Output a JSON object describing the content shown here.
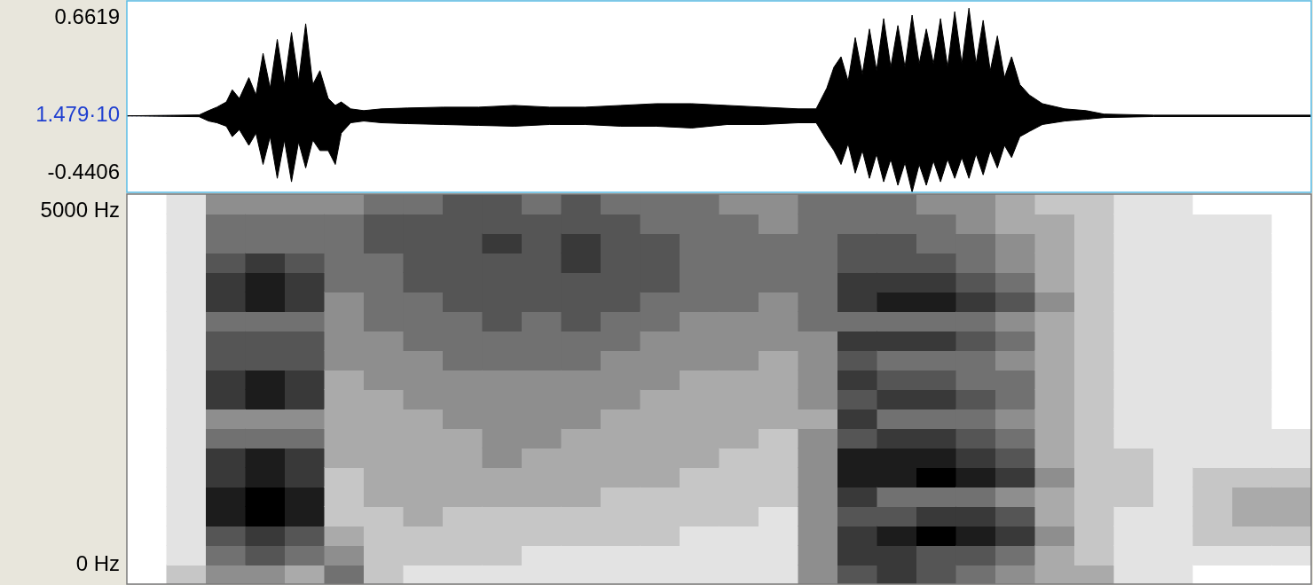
{
  "chart_data": [
    {
      "type": "line",
      "xlim": [
        0,
        1
      ],
      "ylim": [
        -0.4406,
        0.6619
      ],
      "yticks": [
        -0.4406,
        {
          "value": 1.479e-05,
          "label": "1.479·10"
        },
        0.6619
      ],
      "grid": false,
      "tick_labels": "y",
      "x": [
        0,
        0.061,
        0.069,
        0.076,
        0.084,
        0.089,
        0.095,
        0.103,
        0.109,
        0.115,
        0.121,
        0.127,
        0.133,
        0.139,
        0.145,
        0.151,
        0.157,
        0.163,
        0.17,
        0.176,
        0.181,
        0.189,
        0.2,
        0.215,
        0.237,
        0.267,
        0.297,
        0.327,
        0.357,
        0.387,
        0.417,
        0.447,
        0.477,
        0.507,
        0.537,
        0.567,
        0.582,
        0.591,
        0.597,
        0.603,
        0.609,
        0.615,
        0.621,
        0.627,
        0.633,
        0.639,
        0.645,
        0.651,
        0.657,
        0.663,
        0.669,
        0.675,
        0.681,
        0.687,
        0.693,
        0.699,
        0.705,
        0.711,
        0.717,
        0.723,
        0.729,
        0.735,
        0.741,
        0.747,
        0.754,
        0.762,
        0.773,
        0.792,
        0.81,
        0.825,
        0.867,
        1
      ],
      "series": [
        {
          "color": "#000000",
          "values": [
            0,
            0.005,
            0.03,
            0.05,
            0.08,
            0.15,
            0.1,
            0.22,
            0.12,
            0.36,
            0.16,
            0.44,
            0.18,
            0.48,
            0.2,
            0.53,
            0.18,
            0.26,
            0.1,
            0.06,
            0.08,
            0.04,
            0.03,
            0.04,
            0.045,
            0.05,
            0.05,
            0.06,
            0.05,
            0.05,
            0.06,
            0.07,
            0.07,
            0.06,
            0.05,
            0.04,
            0.04,
            0.16,
            0.28,
            0.34,
            0.2,
            0.45,
            0.24,
            0.5,
            0.26,
            0.56,
            0.28,
            0.52,
            0.28,
            0.58,
            0.3,
            0.5,
            0.3,
            0.56,
            0.28,
            0.6,
            0.3,
            0.62,
            0.3,
            0.55,
            0.26,
            0.46,
            0.22,
            0.34,
            0.18,
            0.12,
            0.07,
            0.04,
            0.03,
            0.01,
            0.004,
            0.004
          ]
        },
        {
          "color": "#000000",
          "values": [
            0,
            -0.005,
            -0.03,
            -0.04,
            -0.06,
            -0.12,
            -0.08,
            -0.17,
            -0.1,
            -0.28,
            -0.12,
            -0.36,
            -0.14,
            -0.38,
            -0.15,
            -0.3,
            -0.14,
            -0.2,
            -0.2,
            -0.28,
            -0.1,
            -0.04,
            -0.03,
            -0.04,
            -0.045,
            -0.05,
            -0.055,
            -0.06,
            -0.05,
            -0.05,
            -0.06,
            -0.06,
            -0.07,
            -0.05,
            -0.05,
            -0.04,
            -0.04,
            -0.14,
            -0.2,
            -0.28,
            -0.16,
            -0.33,
            -0.2,
            -0.36,
            -0.22,
            -0.38,
            -0.25,
            -0.4,
            -0.27,
            -0.44,
            -0.28,
            -0.4,
            -0.26,
            -0.38,
            -0.25,
            -0.36,
            -0.24,
            -0.36,
            -0.22,
            -0.34,
            -0.2,
            -0.3,
            -0.17,
            -0.24,
            -0.12,
            -0.09,
            -0.05,
            -0.03,
            -0.02,
            -0.01,
            -0.004,
            -0.004
          ]
        }
      ]
    },
    {
      "type": "heatmap",
      "xlim": [
        0,
        1
      ],
      "ylim": [
        0,
        5000
      ],
      "yticks": [
        {
          "value": 0,
          "label": "0 Hz"
        },
        {
          "value": 5000,
          "label": "5000 Hz"
        }
      ],
      "grid": false,
      "tick_labels": "y",
      "color": "#000000",
      "cell_range": [
        0,
        9
      ],
      "cells": [
        [
          0,
          0,
          0,
          0,
          0,
          0,
          0,
          0,
          0,
          0,
          0,
          0,
          0,
          0,
          0,
          0,
          0,
          0,
          0,
          0
        ],
        [
          2,
          1,
          1,
          1,
          1,
          1,
          1,
          1,
          1,
          1,
          1,
          1,
          1,
          1,
          1,
          1,
          1,
          1,
          1,
          1
        ],
        [
          4,
          5,
          6,
          8,
          8,
          7,
          7,
          5,
          4,
          7,
          7,
          6,
          6,
          5,
          7,
          7,
          6,
          5,
          5,
          4
        ],
        [
          4,
          6,
          7,
          9,
          9,
          8,
          8,
          5,
          4,
          8,
          8,
          6,
          6,
          5,
          8,
          8,
          7,
          5,
          5,
          4
        ],
        [
          3,
          5,
          6,
          8,
          8,
          7,
          7,
          5,
          4,
          7,
          7,
          6,
          6,
          5,
          7,
          7,
          6,
          5,
          5,
          4
        ],
        [
          5,
          4,
          3,
          2,
          2,
          2,
          3,
          3,
          3,
          3,
          3,
          4,
          4,
          4,
          4,
          5,
          5,
          5,
          5,
          4
        ],
        [
          2,
          2,
          2,
          2,
          3,
          3,
          3,
          3,
          3,
          3,
          4,
          4,
          4,
          5,
          5,
          5,
          5,
          6,
          6,
          5
        ],
        [
          1,
          2,
          2,
          3,
          3,
          3,
          3,
          3,
          3,
          4,
          4,
          4,
          5,
          5,
          5,
          6,
          6,
          6,
          6,
          5
        ],
        [
          1,
          2,
          2,
          2,
          3,
          3,
          3,
          3,
          4,
          4,
          4,
          5,
          5,
          5,
          6,
          6,
          6,
          6,
          6,
          6
        ],
        [
          1,
          2,
          2,
          2,
          3,
          3,
          4,
          4,
          4,
          4,
          4,
          5,
          5,
          6,
          6,
          6,
          6,
          7,
          6,
          6
        ],
        [
          1,
          1,
          2,
          2,
          3,
          3,
          3,
          4,
          4,
          4,
          4,
          5,
          5,
          5,
          6,
          6,
          6,
          6,
          6,
          5
        ],
        [
          1,
          1,
          2,
          2,
          3,
          3,
          3,
          3,
          4,
          4,
          4,
          5,
          5,
          6,
          6,
          6,
          7,
          7,
          6,
          6
        ],
        [
          1,
          1,
          2,
          2,
          2,
          3,
          3,
          3,
          3,
          4,
          4,
          4,
          5,
          5,
          6,
          6,
          6,
          6,
          6,
          5
        ],
        [
          1,
          1,
          2,
          2,
          2,
          3,
          3,
          3,
          3,
          3,
          4,
          4,
          4,
          5,
          5,
          6,
          6,
          6,
          5,
          5
        ],
        [
          1,
          1,
          1,
          2,
          2,
          2,
          3,
          3,
          3,
          3,
          3,
          4,
          4,
          4,
          5,
          5,
          5,
          5,
          5,
          5
        ],
        [
          1,
          1,
          1,
          2,
          2,
          2,
          2,
          3,
          3,
          3,
          3,
          4,
          4,
          4,
          5,
          5,
          5,
          5,
          5,
          4
        ],
        [
          1,
          1,
          1,
          1,
          2,
          2,
          2,
          2,
          3,
          3,
          3,
          3,
          4,
          4,
          4,
          5,
          5,
          5,
          4,
          4
        ],
        [
          4,
          4,
          4,
          4,
          4,
          4,
          4,
          4,
          3,
          4,
          4,
          4,
          4,
          5,
          5,
          5,
          5,
          5,
          5,
          5
        ],
        [
          6,
          7,
          7,
          6,
          7,
          8,
          8,
          6,
          7,
          6,
          7,
          6,
          7,
          5,
          7,
          7,
          6,
          6,
          5,
          5
        ],
        [
          7,
          7,
          8,
          6,
          5,
          8,
          8,
          7,
          5,
          7,
          6,
          5,
          7,
          5,
          8,
          7,
          6,
          6,
          5,
          5
        ],
        [
          6,
          6,
          9,
          7,
          5,
          9,
          8,
          7,
          5,
          7,
          6,
          5,
          7,
          5,
          8,
          7,
          6,
          5,
          5,
          4
        ],
        [
          5,
          6,
          8,
          7,
          5,
          8,
          7,
          6,
          5,
          6,
          5,
          5,
          6,
          5,
          7,
          6,
          5,
          5,
          4,
          4
        ],
        [
          4,
          5,
          7,
          6,
          4,
          7,
          6,
          5,
          4,
          5,
          5,
          4,
          5,
          4,
          6,
          5,
          4,
          4,
          3,
          3
        ],
        [
          3,
          3,
          4,
          3,
          3,
          4,
          3,
          3,
          3,
          3,
          3,
          3,
          3,
          3,
          4,
          3,
          3,
          3,
          3,
          2
        ],
        [
          3,
          2,
          2,
          2,
          2,
          2,
          2,
          2,
          2,
          2,
          2,
          2,
          2,
          2,
          2,
          2,
          2,
          2,
          2,
          2
        ],
        [
          1,
          1,
          1,
          1,
          2,
          2,
          2,
          1,
          1,
          1,
          1,
          1,
          1,
          1,
          1,
          1,
          1,
          1,
          1,
          1
        ],
        [
          1,
          1,
          1,
          1,
          1,
          1,
          1,
          1,
          1,
          1,
          1,
          1,
          1,
          1,
          1,
          1,
          1,
          1,
          1,
          1
        ],
        [
          0,
          1,
          2,
          2,
          2,
          2,
          1,
          1,
          1,
          1,
          1,
          1,
          1,
          1,
          1,
          1,
          1,
          1,
          1,
          0
        ],
        [
          0,
          1,
          2,
          3,
          3,
          2,
          1,
          1,
          1,
          1,
          1,
          1,
          1,
          1,
          1,
          1,
          1,
          1,
          1,
          0
        ],
        [
          0,
          1,
          2,
          3,
          3,
          2,
          1,
          1,
          0,
          0,
          0,
          0,
          0,
          0,
          0,
          0,
          0,
          0,
          0,
          0
        ]
      ]
    }
  ]
}
